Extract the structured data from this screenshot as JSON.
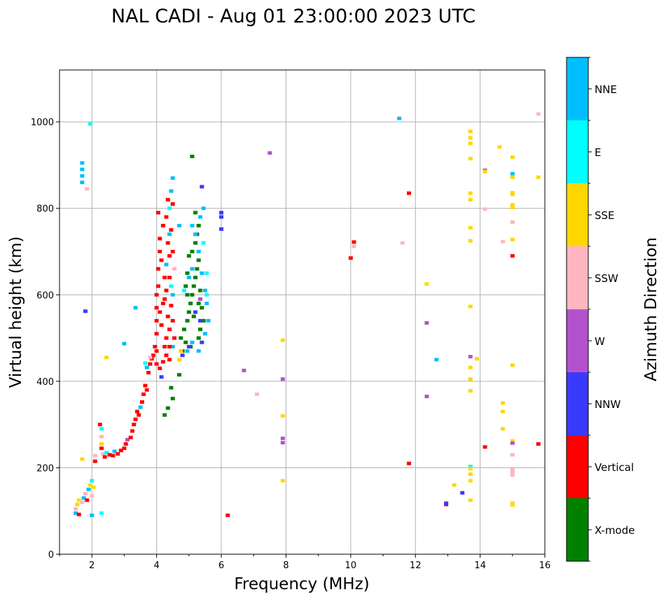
{
  "chart_data": {
    "type": "scatter",
    "title": "NAL CADI - Aug 01 23:00:00 2023 UTC",
    "xlabel": "Frequency (MHz)",
    "ylabel": "Virtual height (km)",
    "xlim": [
      1,
      16
    ],
    "ylim": [
      0,
      1120
    ],
    "xticks": [
      2,
      4,
      6,
      8,
      10,
      12,
      14,
      16
    ],
    "yticks": [
      0,
      200,
      400,
      600,
      800,
      1000
    ],
    "grid": true,
    "colorbar": {
      "label": "Azimuth Direction",
      "categories": [
        "X-mode",
        "Vertical",
        "NNW",
        "W",
        "SSW",
        "SSE",
        "E",
        "NNE"
      ],
      "colors": [
        "#008000",
        "#ff0000",
        "#3a3aff",
        "#b452cd",
        "#ffb6c1",
        "#ffd700",
        "#00ffff",
        "#00bfff"
      ]
    },
    "points": [
      [
        1.5,
        95,
        7
      ],
      [
        1.5,
        105,
        4
      ],
      [
        1.55,
        115,
        5
      ],
      [
        1.6,
        92,
        1
      ],
      [
        1.6,
        125,
        5
      ],
      [
        1.7,
        120,
        4
      ],
      [
        1.75,
        130,
        7
      ],
      [
        1.8,
        140,
        4
      ],
      [
        1.85,
        125,
        1
      ],
      [
        1.9,
        150,
        7
      ],
      [
        1.95,
        160,
        5
      ],
      [
        2.0,
        170,
        6
      ],
      [
        2.0,
        135,
        4
      ],
      [
        2.05,
        155,
        5
      ],
      [
        2.0,
        90,
        7
      ],
      [
        2.1,
        215,
        1
      ],
      [
        2.1,
        228,
        4
      ],
      [
        2.25,
        300,
        1
      ],
      [
        2.3,
        290,
        6
      ],
      [
        2.3,
        272,
        4
      ],
      [
        2.3,
        255,
        5
      ],
      [
        2.3,
        245,
        1
      ],
      [
        2.3,
        95,
        6
      ],
      [
        2.35,
        232,
        4
      ],
      [
        2.4,
        225,
        1
      ],
      [
        2.45,
        235,
        6
      ],
      [
        2.55,
        230,
        1
      ],
      [
        2.65,
        228,
        1
      ],
      [
        2.7,
        238,
        7
      ],
      [
        2.8,
        232,
        1
      ],
      [
        2.9,
        240,
        1
      ],
      [
        3.0,
        245,
        1
      ],
      [
        3.05,
        255,
        1
      ],
      [
        3.1,
        265,
        3
      ],
      [
        3.2,
        270,
        1
      ],
      [
        3.25,
        285,
        1
      ],
      [
        3.3,
        300,
        1
      ],
      [
        3.35,
        312,
        1
      ],
      [
        3.4,
        330,
        1
      ],
      [
        3.45,
        322,
        1
      ],
      [
        3.5,
        340,
        7
      ],
      [
        3.55,
        352,
        1
      ],
      [
        3.6,
        370,
        1
      ],
      [
        3.65,
        390,
        1
      ],
      [
        3.7,
        380,
        1
      ],
      [
        3.75,
        420,
        1
      ],
      [
        3.8,
        440,
        1
      ],
      [
        3.85,
        452,
        1
      ],
      [
        3.9,
        460,
        1
      ],
      [
        3.95,
        480,
        1
      ],
      [
        4.0,
        470,
        1
      ],
      [
        3.7,
        432,
        7
      ],
      [
        3.65,
        442,
        6
      ],
      [
        3.8,
        455,
        4
      ],
      [
        4.0,
        440,
        1
      ],
      [
        4.1,
        430,
        1
      ],
      [
        4.2,
        445,
        1
      ],
      [
        4.3,
        460,
        1
      ],
      [
        4.15,
        410,
        2
      ],
      [
        4.4,
        450,
        1
      ],
      [
        4.0,
        510,
        1
      ],
      [
        4.0,
        540,
        1
      ],
      [
        4.0,
        570,
        1
      ],
      [
        4.0,
        600,
        1
      ],
      [
        4.05,
        620,
        1
      ],
      [
        4.1,
        560,
        1
      ],
      [
        4.15,
        530,
        1
      ],
      [
        4.2,
        580,
        1
      ],
      [
        4.25,
        590,
        1
      ],
      [
        4.3,
        500,
        1
      ],
      [
        4.3,
        610,
        1
      ],
      [
        4.35,
        550,
        1
      ],
      [
        4.4,
        520,
        1
      ],
      [
        4.4,
        640,
        1
      ],
      [
        4.45,
        575,
        1
      ],
      [
        4.5,
        600,
        7
      ],
      [
        4.5,
        540,
        1
      ],
      [
        4.05,
        660,
        1
      ],
      [
        4.1,
        700,
        1
      ],
      [
        4.1,
        730,
        1
      ],
      [
        4.05,
        790,
        1
      ],
      [
        4.2,
        760,
        1
      ],
      [
        4.3,
        780,
        1
      ],
      [
        4.35,
        720,
        1
      ],
      [
        4.4,
        690,
        1
      ],
      [
        4.45,
        750,
        1
      ],
      [
        4.5,
        810,
        1
      ],
      [
        4.3,
        670,
        7
      ],
      [
        4.4,
        740,
        7
      ],
      [
        4.45,
        840,
        7
      ],
      [
        4.5,
        870,
        7
      ],
      [
        4.35,
        820,
        1
      ],
      [
        4.4,
        800,
        6
      ],
      [
        4.5,
        700,
        1
      ],
      [
        4.55,
        660,
        4
      ],
      [
        4.45,
        620,
        6
      ],
      [
        4.25,
        640,
        1
      ],
      [
        4.15,
        680,
        1
      ],
      [
        4.5,
        480,
        7
      ],
      [
        4.55,
        500,
        1
      ],
      [
        4.4,
        480,
        1
      ],
      [
        4.25,
        480,
        1
      ],
      [
        4.45,
        385,
        0
      ],
      [
        4.5,
        360,
        0
      ],
      [
        4.25,
        322,
        0
      ],
      [
        4.35,
        338,
        0
      ],
      [
        4.8,
        470,
        0
      ],
      [
        4.9,
        490,
        0
      ],
      [
        4.85,
        520,
        0
      ],
      [
        4.95,
        540,
        0
      ],
      [
        5.0,
        560,
        0
      ],
      [
        5.05,
        580,
        0
      ],
      [
        5.1,
        600,
        0
      ],
      [
        5.15,
        620,
        0
      ],
      [
        5.2,
        640,
        0
      ],
      [
        5.25,
        660,
        0
      ],
      [
        5.3,
        680,
        0
      ],
      [
        5.1,
        700,
        0
      ],
      [
        5.2,
        720,
        0
      ],
      [
        5.25,
        740,
        0
      ],
      [
        5.3,
        760,
        0
      ],
      [
        5.2,
        790,
        0
      ],
      [
        4.9,
        620,
        0
      ],
      [
        4.95,
        650,
        0
      ],
      [
        5.0,
        690,
        0
      ],
      [
        5.35,
        610,
        0
      ],
      [
        5.4,
        570,
        0
      ],
      [
        5.45,
        540,
        0
      ],
      [
        5.35,
        520,
        0
      ],
      [
        5.3,
        500,
        0
      ],
      [
        5.05,
        480,
        0
      ],
      [
        4.75,
        500,
        0
      ],
      [
        4.7,
        415,
        0
      ],
      [
        5.1,
        920,
        0
      ],
      [
        4.95,
        600,
        0
      ],
      [
        5.15,
        550,
        0
      ],
      [
        5.3,
        580,
        0
      ],
      [
        5.0,
        640,
        7
      ],
      [
        5.1,
        660,
        7
      ],
      [
        5.3,
        700,
        7
      ],
      [
        5.4,
        650,
        7
      ],
      [
        5.5,
        610,
        7
      ],
      [
        5.55,
        580,
        7
      ],
      [
        5.6,
        540,
        7
      ],
      [
        5.5,
        510,
        7
      ],
      [
        5.3,
        470,
        7
      ],
      [
        5.1,
        490,
        7
      ],
      [
        4.95,
        470,
        7
      ],
      [
        5.2,
        740,
        7
      ],
      [
        5.35,
        780,
        7
      ],
      [
        5.45,
        800,
        7
      ],
      [
        5.1,
        760,
        7
      ],
      [
        4.7,
        760,
        7
      ],
      [
        5.55,
        600,
        6
      ],
      [
        5.2,
        560,
        2
      ],
      [
        5.35,
        540,
        2
      ],
      [
        5.4,
        490,
        2
      ],
      [
        5.0,
        480,
        2
      ],
      [
        4.8,
        460,
        2
      ],
      [
        5.35,
        590,
        3
      ],
      [
        4.75,
        470,
        5
      ],
      [
        4.7,
        450,
        5
      ],
      [
        4.85,
        610,
        6
      ],
      [
        5.4,
        850,
        2
      ],
      [
        5.55,
        650,
        6
      ],
      [
        5.45,
        720,
        6
      ],
      [
        6.0,
        752,
        2
      ],
      [
        6.0,
        780,
        2
      ],
      [
        6.0,
        790,
        2
      ],
      [
        6.2,
        90,
        1
      ],
      [
        6.7,
        425,
        3
      ],
      [
        7.1,
        370,
        4
      ],
      [
        7.5,
        928,
        3
      ],
      [
        7.9,
        495,
        5
      ],
      [
        7.9,
        405,
        3
      ],
      [
        7.9,
        320,
        5
      ],
      [
        7.9,
        268,
        3
      ],
      [
        7.9,
        258,
        3
      ],
      [
        7.9,
        170,
        5
      ],
      [
        1.7,
        860,
        7
      ],
      [
        1.7,
        875,
        7
      ],
      [
        1.7,
        890,
        7
      ],
      [
        1.7,
        905,
        7
      ],
      [
        1.85,
        845,
        4
      ],
      [
        1.95,
        995,
        6
      ],
      [
        1.8,
        562,
        2
      ],
      [
        2.45,
        455,
        5
      ],
      [
        3.0,
        487,
        7
      ],
      [
        3.35,
        570,
        7
      ],
      [
        1.7,
        220,
        5
      ],
      [
        10.0,
        685,
        1
      ],
      [
        10.1,
        712,
        4
      ],
      [
        10.1,
        722,
        1
      ],
      [
        11.5,
        1008,
        7
      ],
      [
        11.8,
        835,
        1
      ],
      [
        11.8,
        210,
        1
      ],
      [
        11.6,
        720,
        4
      ],
      [
        12.35,
        625,
        5
      ],
      [
        12.35,
        535,
        3
      ],
      [
        12.35,
        365,
        3
      ],
      [
        12.65,
        450,
        7
      ],
      [
        12.95,
        115,
        1
      ],
      [
        12.95,
        118,
        2
      ],
      [
        13.2,
        160,
        5
      ],
      [
        13.45,
        142,
        2
      ],
      [
        13.7,
        978,
        5
      ],
      [
        13.7,
        963,
        5
      ],
      [
        13.7,
        950,
        5
      ],
      [
        13.7,
        915,
        5
      ],
      [
        13.7,
        835,
        5
      ],
      [
        13.7,
        820,
        5
      ],
      [
        13.7,
        755,
        5
      ],
      [
        13.7,
        725,
        5
      ],
      [
        13.7,
        573,
        5
      ],
      [
        13.7,
        457,
        3
      ],
      [
        13.7,
        432,
        5
      ],
      [
        13.7,
        405,
        5
      ],
      [
        13.7,
        378,
        5
      ],
      [
        13.7,
        203,
        6
      ],
      [
        13.7,
        198,
        5
      ],
      [
        13.7,
        185,
        5
      ],
      [
        13.7,
        170,
        5
      ],
      [
        13.7,
        125,
        5
      ],
      [
        13.9,
        452,
        5
      ],
      [
        14.15,
        888,
        3
      ],
      [
        14.15,
        885,
        5
      ],
      [
        14.15,
        248,
        1
      ],
      [
        14.15,
        798,
        4
      ],
      [
        14.6,
        942,
        5
      ],
      [
        14.7,
        350,
        5
      ],
      [
        14.7,
        330,
        5
      ],
      [
        14.7,
        290,
        5
      ],
      [
        14.7,
        723,
        4
      ],
      [
        15.0,
        918,
        5
      ],
      [
        15.0,
        880,
        7
      ],
      [
        15.0,
        872,
        5
      ],
      [
        15.0,
        836,
        5
      ],
      [
        15.0,
        832,
        5
      ],
      [
        15.0,
        808,
        5
      ],
      [
        15.0,
        802,
        5
      ],
      [
        15.0,
        768,
        4
      ],
      [
        15.0,
        728,
        5
      ],
      [
        15.0,
        690,
        1
      ],
      [
        15.0,
        437,
        5
      ],
      [
        15.0,
        262,
        5
      ],
      [
        15.0,
        257,
        3
      ],
      [
        15.0,
        230,
        4
      ],
      [
        15.0,
        195,
        4
      ],
      [
        15.0,
        190,
        4
      ],
      [
        15.0,
        183,
        4
      ],
      [
        15.0,
        118,
        5
      ],
      [
        15.0,
        114,
        5
      ],
      [
        15.8,
        255,
        1
      ],
      [
        15.8,
        872,
        5
      ],
      [
        15.8,
        1018,
        4
      ]
    ]
  }
}
